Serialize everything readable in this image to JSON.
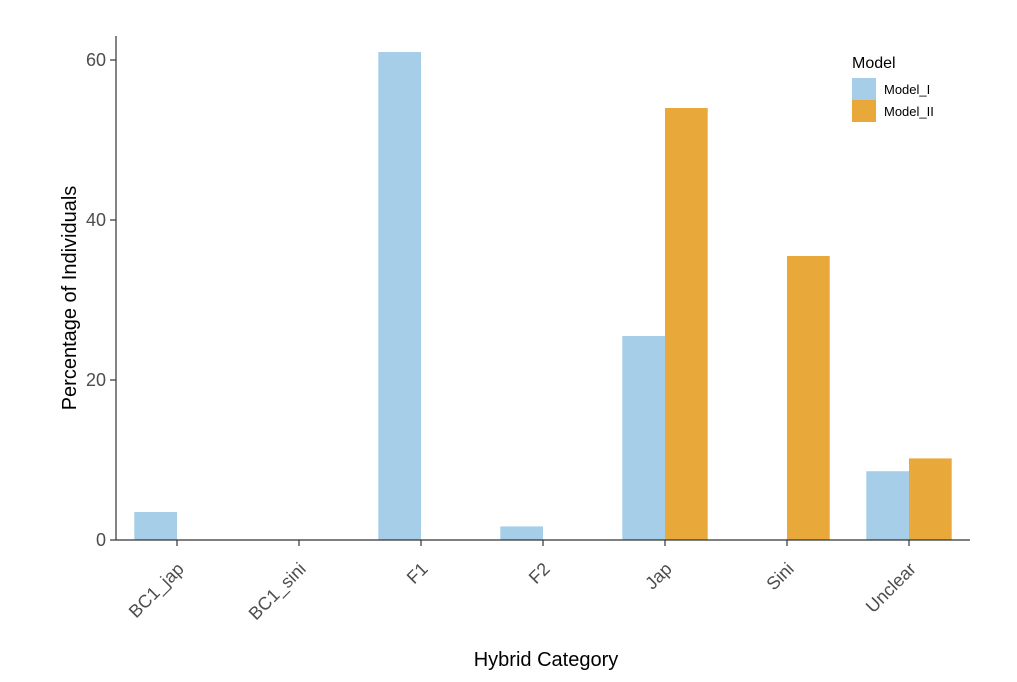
{
  "chart_data": {
    "type": "bar",
    "title": "",
    "xlabel": "Hybrid Category",
    "ylabel": "Percentage of Individuals",
    "categories": [
      "BC1_jap",
      "BC1_sini",
      "F1",
      "F2",
      "Jap",
      "Sini",
      "Unclear"
    ],
    "series": [
      {
        "name": "Model_I",
        "color": "#a6cee8",
        "values": [
          3.5,
          0,
          61,
          1.7,
          25.5,
          0,
          8.6
        ]
      },
      {
        "name": "Model_II",
        "color": "#e8a93a",
        "values": [
          0,
          0,
          0,
          0,
          54,
          35.5,
          10.2
        ]
      }
    ],
    "ylim": [
      0,
      63
    ],
    "yticks": [
      0,
      20,
      40,
      60
    ],
    "yticklabels": [
      "0",
      "20",
      "40",
      "60"
    ],
    "grid": false,
    "legend": {
      "title": "Model",
      "position": "top-right"
    }
  }
}
